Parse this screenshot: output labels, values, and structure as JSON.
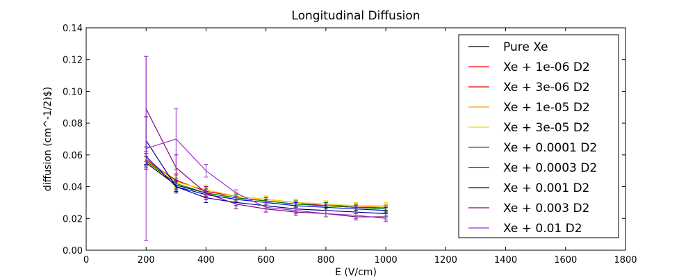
{
  "chart_data": {
    "type": "line",
    "title": "Longitudinal Diffusion",
    "xlabel": "E (V/cm)",
    "ylabel": "diffusion (cm^-1/2)$)",
    "xlim": [
      0,
      1800
    ],
    "ylim": [
      0.0,
      0.14
    ],
    "xticks": [
      "0",
      "200",
      "400",
      "600",
      "800",
      "1000",
      "1200",
      "1400",
      "1600",
      "1800"
    ],
    "yticks": [
      "0.00",
      "0.02",
      "0.04",
      "0.06",
      "0.08",
      "0.10",
      "0.12",
      "0.14"
    ],
    "grid": false,
    "legend_position": "upper right",
    "x": [
      200,
      300,
      400,
      500,
      600,
      700,
      800,
      900,
      1000
    ],
    "series": [
      {
        "name": "Pure Xe",
        "color": "#000000",
        "values": [
          0.055,
          0.041,
          0.036,
          0.033,
          0.031,
          0.029,
          0.028,
          0.027,
          0.026
        ],
        "err": [
          0.004,
          0.003,
          0.003,
          0.002,
          0.002,
          0.002,
          0.002,
          0.002,
          0.002
        ]
      },
      {
        "name": "Xe + 1e-06 D2",
        "color": "#ff0000",
        "values": [
          0.057,
          0.044,
          0.037,
          0.034,
          0.032,
          0.03,
          0.029,
          0.027,
          0.027
        ],
        "err": [
          0.005,
          0.004,
          0.003,
          0.002,
          0.002,
          0.002,
          0.002,
          0.002,
          0.002
        ]
      },
      {
        "name": "Xe + 3e-06 D2",
        "color": "#dd0000",
        "values": [
          0.056,
          0.044,
          0.037,
          0.034,
          0.032,
          0.03,
          0.028,
          0.027,
          0.027
        ],
        "err": [
          0.005,
          0.004,
          0.003,
          0.002,
          0.002,
          0.002,
          0.002,
          0.002,
          0.002
        ]
      },
      {
        "name": "Xe + 1e-05 D2",
        "color": "#ffa500",
        "values": [
          0.058,
          0.043,
          0.038,
          0.034,
          0.032,
          0.03,
          0.029,
          0.028,
          0.027
        ],
        "err": [
          0.007,
          0.004,
          0.003,
          0.002,
          0.002,
          0.002,
          0.002,
          0.002,
          0.002
        ]
      },
      {
        "name": "Xe + 3e-05 D2",
        "color": "#ffd700",
        "values": [
          0.056,
          0.043,
          0.038,
          0.034,
          0.032,
          0.03,
          0.029,
          0.028,
          0.028
        ],
        "err": [
          0.005,
          0.003,
          0.003,
          0.002,
          0.002,
          0.002,
          0.002,
          0.002,
          0.002
        ]
      },
      {
        "name": "Xe + 0.0001 D2",
        "color": "#008000",
        "values": [
          0.056,
          0.042,
          0.036,
          0.033,
          0.031,
          0.029,
          0.028,
          0.027,
          0.026
        ],
        "err": [
          0.005,
          0.003,
          0.003,
          0.002,
          0.002,
          0.002,
          0.002,
          0.002,
          0.002
        ]
      },
      {
        "name": "Xe + 0.0003 D2",
        "color": "#0000ff",
        "values": [
          0.059,
          0.04,
          0.035,
          0.032,
          0.03,
          0.028,
          0.027,
          0.026,
          0.025
        ],
        "err": [
          0.006,
          0.003,
          0.003,
          0.002,
          0.002,
          0.002,
          0.002,
          0.002,
          0.002
        ]
      },
      {
        "name": "Xe + 0.001 D2",
        "color": "#00008b",
        "values": [
          0.069,
          0.04,
          0.033,
          0.03,
          0.028,
          0.026,
          0.025,
          0.024,
          0.023
        ],
        "err": [
          0.015,
          0.004,
          0.003,
          0.002,
          0.002,
          0.002,
          0.002,
          0.002,
          0.002
        ]
      },
      {
        "name": "Xe + 0.003 D2",
        "color": "#800080",
        "values": [
          0.089,
          0.052,
          0.036,
          0.029,
          0.026,
          0.024,
          0.023,
          0.021,
          0.021
        ],
        "err": [
          0.033,
          0.008,
          0.004,
          0.003,
          0.002,
          0.002,
          0.002,
          0.002,
          0.002
        ]
      },
      {
        "name": "Xe + 0.01 D2",
        "color": "#9932cc",
        "values": [
          0.064,
          0.07,
          0.05,
          0.036,
          0.027,
          0.025,
          0.023,
          0.022,
          0.02
        ],
        "err": [
          0.058,
          0.019,
          0.004,
          0.002,
          0.003,
          0.002,
          0.002,
          0.002,
          0.002
        ]
      }
    ]
  }
}
